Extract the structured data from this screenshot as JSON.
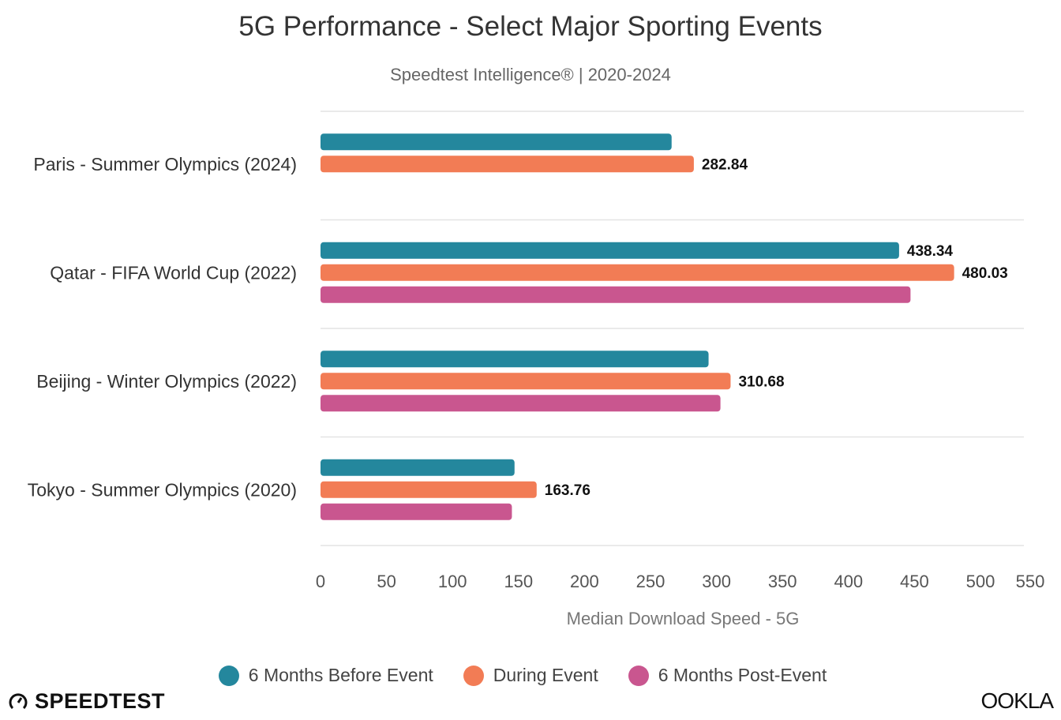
{
  "chart_data": {
    "type": "bar",
    "orientation": "horizontal",
    "title": "5G Performance - Select Major Sporting Events",
    "subtitle": "Speedtest Intelligence® | 2020-2024",
    "xlabel": "Median Download Speed - 5G",
    "ylabel": "",
    "xlim": [
      0,
      550
    ],
    "xticks": [
      "0",
      "50",
      "100",
      "150",
      "200",
      "250",
      "300",
      "350",
      "400",
      "450",
      "500",
      "550"
    ],
    "grid": true,
    "legend_position": "bottom",
    "categories": [
      "Paris - Summer Olympics (2024)",
      "Qatar - FIFA World Cup (2022)",
      "Beijing - Winter Olympics (2022)",
      "Tokyo - Summer Olympics (2020)"
    ],
    "series": [
      {
        "name": "6 Months Before Event",
        "color": "#24879d",
        "values": [
          266,
          438.34,
          294,
          147
        ],
        "labels": [
          "",
          "438.34",
          "",
          ""
        ]
      },
      {
        "name": "During Event",
        "color": "#f27c55",
        "values": [
          282.84,
          480.03,
          310.68,
          163.76
        ],
        "labels": [
          "282.84",
          "480.03",
          "310.68",
          "163.76"
        ]
      },
      {
        "name": "6 Months Post-Event",
        "color": "#c9568f",
        "values": [
          null,
          447,
          303,
          145
        ],
        "labels": [
          "",
          "",
          "",
          ""
        ]
      }
    ]
  },
  "branding": {
    "left_logo": "SPEEDTEST",
    "right_logo": "OOKLA"
  }
}
